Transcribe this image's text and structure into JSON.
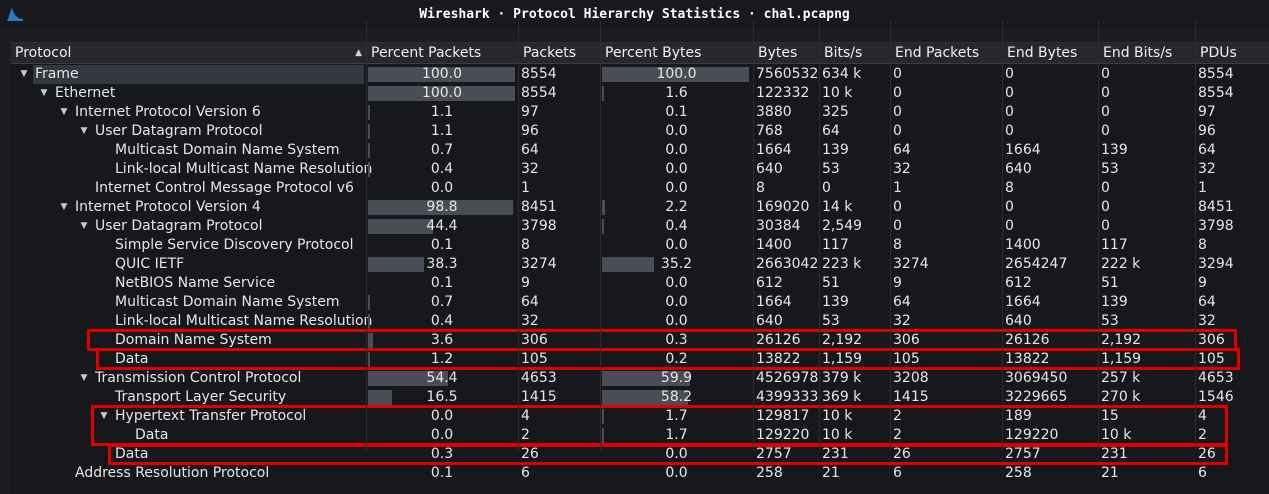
{
  "window": {
    "title": "Wireshark · Protocol Hierarchy Statistics · chal.pcapng"
  },
  "columns": [
    "Protocol",
    "Percent Packets",
    "Packets",
    "Percent Bytes",
    "Bytes",
    "Bits/s",
    "End Packets",
    "End Bytes",
    "End Bits/s",
    "PDUs"
  ],
  "rows": [
    {
      "name": "Frame",
      "depth": 0,
      "expander": "expanded",
      "pct_packets": "100.0",
      "packets": "8554",
      "pct_bytes": "100.0",
      "bytes": "7560532",
      "bits": "634 k",
      "end_packets": "0",
      "end_bytes": "0",
      "end_bits": "0",
      "pdus": "8554",
      "pp": 100.0,
      "pb": 100.0,
      "selected": true
    },
    {
      "name": "Ethernet",
      "depth": 1,
      "expander": "expanded",
      "pct_packets": "100.0",
      "packets": "8554",
      "pct_bytes": "1.6",
      "bytes": "122332",
      "bits": "10 k",
      "end_packets": "0",
      "end_bytes": "0",
      "end_bits": "0",
      "pdus": "8554",
      "pp": 100.0,
      "pb": 1.6
    },
    {
      "name": "Internet Protocol Version 6",
      "depth": 2,
      "expander": "expanded",
      "pct_packets": "1.1",
      "packets": "97",
      "pct_bytes": "0.1",
      "bytes": "3880",
      "bits": "325",
      "end_packets": "0",
      "end_bytes": "0",
      "end_bits": "0",
      "pdus": "97",
      "pp": 1.1,
      "pb": 0.1
    },
    {
      "name": "User Datagram Protocol",
      "depth": 3,
      "expander": "expanded",
      "pct_packets": "1.1",
      "packets": "96",
      "pct_bytes": "0.0",
      "bytes": "768",
      "bits": "64",
      "end_packets": "0",
      "end_bytes": "0",
      "end_bits": "0",
      "pdus": "96",
      "pp": 1.1,
      "pb": 0.0
    },
    {
      "name": "Multicast Domain Name System",
      "depth": 4,
      "expander": "none",
      "pct_packets": "0.7",
      "packets": "64",
      "pct_bytes": "0.0",
      "bytes": "1664",
      "bits": "139",
      "end_packets": "64",
      "end_bytes": "1664",
      "end_bits": "139",
      "pdus": "64",
      "pp": 0.7,
      "pb": 0.0
    },
    {
      "name": "Link-local Multicast Name Resolution",
      "depth": 4,
      "expander": "none",
      "pct_packets": "0.4",
      "packets": "32",
      "pct_bytes": "0.0",
      "bytes": "640",
      "bits": "53",
      "end_packets": "32",
      "end_bytes": "640",
      "end_bits": "53",
      "pdus": "32",
      "pp": 0.4,
      "pb": 0.0
    },
    {
      "name": "Internet Control Message Protocol v6",
      "depth": 3,
      "expander": "none",
      "pct_packets": "0.0",
      "packets": "1",
      "pct_bytes": "0.0",
      "bytes": "8",
      "bits": "0",
      "end_packets": "1",
      "end_bytes": "8",
      "end_bits": "0",
      "pdus": "1",
      "pp": 0.0,
      "pb": 0.0
    },
    {
      "name": "Internet Protocol Version 4",
      "depth": 2,
      "expander": "expanded",
      "pct_packets": "98.8",
      "packets": "8451",
      "pct_bytes": "2.2",
      "bytes": "169020",
      "bits": "14 k",
      "end_packets": "0",
      "end_bytes": "0",
      "end_bits": "0",
      "pdus": "8451",
      "pp": 98.8,
      "pb": 2.2
    },
    {
      "name": "User Datagram Protocol",
      "depth": 3,
      "expander": "expanded",
      "pct_packets": "44.4",
      "packets": "3798",
      "pct_bytes": "0.4",
      "bytes": "30384",
      "bits": "2,549",
      "end_packets": "0",
      "end_bytes": "0",
      "end_bits": "0",
      "pdus": "3798",
      "pp": 44.4,
      "pb": 0.4
    },
    {
      "name": "Simple Service Discovery Protocol",
      "depth": 4,
      "expander": "none",
      "pct_packets": "0.1",
      "packets": "8",
      "pct_bytes": "0.0",
      "bytes": "1400",
      "bits": "117",
      "end_packets": "8",
      "end_bytes": "1400",
      "end_bits": "117",
      "pdus": "8",
      "pp": 0.1,
      "pb": 0.0
    },
    {
      "name": "QUIC IETF",
      "depth": 4,
      "expander": "none",
      "pct_packets": "38.3",
      "packets": "3274",
      "pct_bytes": "35.2",
      "bytes": "2663042",
      "bits": "223 k",
      "end_packets": "3274",
      "end_bytes": "2654247",
      "end_bits": "222 k",
      "pdus": "3294",
      "pp": 38.3,
      "pb": 35.2
    },
    {
      "name": "NetBIOS Name Service",
      "depth": 4,
      "expander": "none",
      "pct_packets": "0.1",
      "packets": "9",
      "pct_bytes": "0.0",
      "bytes": "612",
      "bits": "51",
      "end_packets": "9",
      "end_bytes": "612",
      "end_bits": "51",
      "pdus": "9",
      "pp": 0.1,
      "pb": 0.0
    },
    {
      "name": "Multicast Domain Name System",
      "depth": 4,
      "expander": "none",
      "pct_packets": "0.7",
      "packets": "64",
      "pct_bytes": "0.0",
      "bytes": "1664",
      "bits": "139",
      "end_packets": "64",
      "end_bytes": "1664",
      "end_bits": "139",
      "pdus": "64",
      "pp": 0.7,
      "pb": 0.0
    },
    {
      "name": "Link-local Multicast Name Resolution",
      "depth": 4,
      "expander": "none",
      "pct_packets": "0.4",
      "packets": "32",
      "pct_bytes": "0.0",
      "bytes": "640",
      "bits": "53",
      "end_packets": "32",
      "end_bytes": "640",
      "end_bits": "53",
      "pdus": "32",
      "pp": 0.4,
      "pb": 0.0
    },
    {
      "name": "Domain Name System",
      "depth": 4,
      "expander": "none",
      "pct_packets": "3.6",
      "packets": "306",
      "pct_bytes": "0.3",
      "bytes": "26126",
      "bits": "2,192",
      "end_packets": "306",
      "end_bytes": "26126",
      "end_bits": "2,192",
      "pdus": "306",
      "pp": 3.6,
      "pb": 0.3
    },
    {
      "name": "Data",
      "depth": 4,
      "expander": "none",
      "pct_packets": "1.2",
      "packets": "105",
      "pct_bytes": "0.2",
      "bytes": "13822",
      "bits": "1,159",
      "end_packets": "105",
      "end_bytes": "13822",
      "end_bits": "1,159",
      "pdus": "105",
      "pp": 1.2,
      "pb": 0.2
    },
    {
      "name": "Transmission Control Protocol",
      "depth": 3,
      "expander": "expanded",
      "pct_packets": "54.4",
      "packets": "4653",
      "pct_bytes": "59.9",
      "bytes": "4526978",
      "bits": "379 k",
      "end_packets": "3208",
      "end_bytes": "3069450",
      "end_bits": "257 k",
      "pdus": "4653",
      "pp": 54.4,
      "pb": 59.9
    },
    {
      "name": "Transport Layer Security",
      "depth": 4,
      "expander": "none",
      "pct_packets": "16.5",
      "packets": "1415",
      "pct_bytes": "58.2",
      "bytes": "4399333",
      "bits": "369 k",
      "end_packets": "1415",
      "end_bytes": "3229665",
      "end_bits": "270 k",
      "pdus": "1546",
      "pp": 16.5,
      "pb": 58.2
    },
    {
      "name": "Hypertext Transfer Protocol",
      "depth": 4,
      "expander": "expanded",
      "pct_packets": "0.0",
      "packets": "4",
      "pct_bytes": "1.7",
      "bytes": "129817",
      "bits": "10 k",
      "end_packets": "2",
      "end_bytes": "189",
      "end_bits": "15",
      "pdus": "4",
      "pp": 0.0,
      "pb": 1.7
    },
    {
      "name": "Data",
      "depth": 5,
      "expander": "none",
      "pct_packets": "0.0",
      "packets": "2",
      "pct_bytes": "1.7",
      "bytes": "129220",
      "bits": "10 k",
      "end_packets": "2",
      "end_bytes": "129220",
      "end_bits": "10 k",
      "pdus": "2",
      "pp": 0.0,
      "pb": 1.7
    },
    {
      "name": "Data",
      "depth": 4,
      "expander": "none",
      "pct_packets": "0.3",
      "packets": "26",
      "pct_bytes": "0.0",
      "bytes": "2757",
      "bits": "231",
      "end_packets": "26",
      "end_bytes": "2757",
      "end_bits": "231",
      "pdus": "26",
      "pp": 0.3,
      "pb": 0.0
    },
    {
      "name": "Address Resolution Protocol",
      "depth": 2,
      "expander": "none",
      "pct_packets": "0.1",
      "packets": "6",
      "pct_bytes": "0.0",
      "bytes": "258",
      "bits": "21",
      "end_packets": "6",
      "end_bytes": "258",
      "end_bits": "21",
      "pdus": "6",
      "pp": 0.1,
      "pb": 0.0
    }
  ],
  "highlight_color": "#e00000",
  "bar_color": "#4a4d55",
  "icons": {
    "app": "wireshark-fin-icon",
    "sort": "sort-ascending-icon",
    "expanded": "triangle-down-icon"
  }
}
